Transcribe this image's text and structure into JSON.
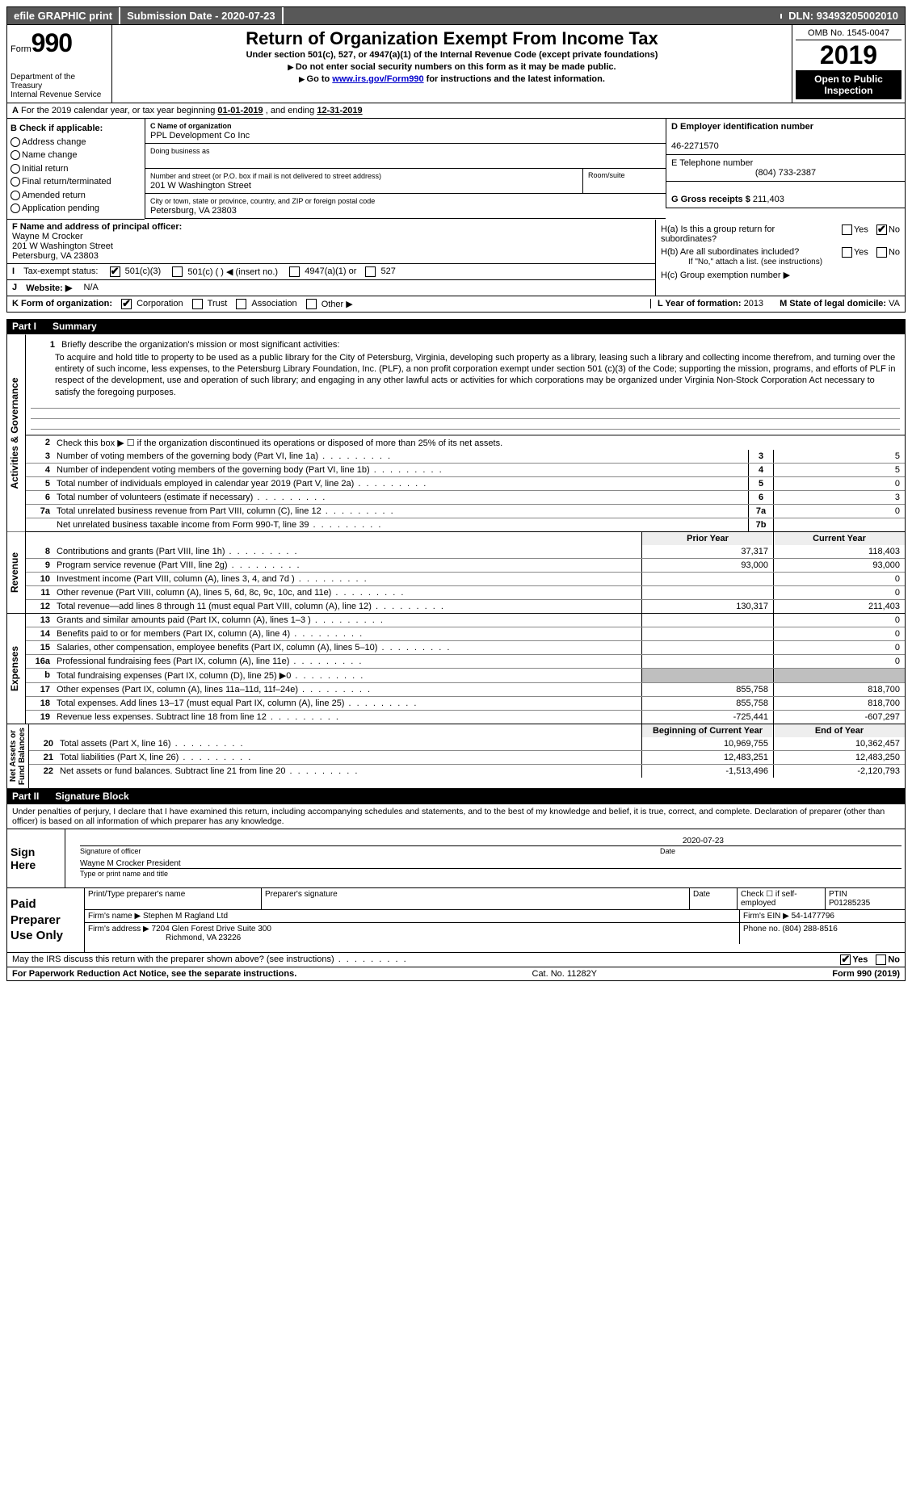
{
  "topbar": {
    "efile": "efile GRAPHIC print",
    "submission_label": "Submission Date - ",
    "submission_date": "2020-07-23",
    "dln_label": "DLN: ",
    "dln": "93493205002010"
  },
  "header": {
    "form_word": "Form",
    "form_number": "990",
    "dept": "Department of the Treasury\nInternal Revenue Service",
    "title": "Return of Organization Exempt From Income Tax",
    "subtitle": "Under section 501(c), 527, or 4947(a)(1) of the Internal Revenue Code (except private foundations)",
    "warn": "Do not enter social security numbers on this form as it may be made public.",
    "goto_pre": "Go to ",
    "goto_link": "www.irs.gov/Form990",
    "goto_post": " for instructions and the latest information.",
    "omb_label": "OMB No. ",
    "omb": "1545-0047",
    "year": "2019",
    "open": "Open to Public Inspection"
  },
  "rowA": {
    "pre": "For the 2019 calendar year, or tax year beginning ",
    "begin": "01-01-2019",
    "mid": " , and ending ",
    "end": "12-31-2019"
  },
  "B": {
    "heading": "B Check if applicable:",
    "opts": [
      "Address change",
      "Name change",
      "Initial return",
      "Final return/terminated",
      "Amended return",
      "Application pending"
    ]
  },
  "C": {
    "name_label": "C Name of organization",
    "name": "PPL Development Co Inc",
    "dba_label": "Doing business as",
    "dba": "",
    "street_label": "Number and street (or P.O. box if mail is not delivered to street address)",
    "room_label": "Room/suite",
    "street": "201 W Washington Street",
    "city_label": "City or town, state or province, country, and ZIP or foreign postal code",
    "city": "Petersburg, VA  23803"
  },
  "D": {
    "label": "D Employer identification number",
    "value": "46-2271570"
  },
  "E": {
    "label": "E Telephone number",
    "value": "(804) 733-2387"
  },
  "G": {
    "label": "G Gross receipts $ ",
    "value": "211,403"
  },
  "F": {
    "label": "F  Name and address of principal officer:",
    "name": "Wayne M Crocker",
    "street": "201 W Washington Street",
    "city": "Petersburg, VA  23803"
  },
  "H": {
    "a_label": "H(a)  Is this a group return for subordinates?",
    "b_label": "H(b)  Are all subordinates included?",
    "b_note": "If \"No,\" attach a list. (see instructions)",
    "c_label": "H(c)  Group exemption number ▶",
    "yes": "Yes",
    "no": "No"
  },
  "I": {
    "label": "Tax-exempt status:",
    "opts": {
      "c3": "501(c)(3)",
      "c": "501(c) (  ) ◀ (insert no.)",
      "a1": "4947(a)(1) or",
      "527": "527"
    }
  },
  "J": {
    "label": "Website: ▶",
    "value": "N/A"
  },
  "K": {
    "label": "K Form of organization:",
    "opts": [
      "Corporation",
      "Trust",
      "Association",
      "Other ▶"
    ],
    "L_label": "L Year of formation: ",
    "L_value": "2013",
    "M_label": "M State of legal domicile: ",
    "M_value": "VA"
  },
  "part1": {
    "num": "Part I",
    "title": "Summary"
  },
  "mission_label": "Briefly describe the organization's mission or most significant activities:",
  "mission": "To acquire and hold title to property to be used as a public library for the City of Petersburg, Virginia, developing such property as a library, leasing such a library and collecting income therefrom, and turning over the entirety of such income, less expenses, to the Petersburg Library Foundation, Inc. (PLF), a non profit corporation exempt under section 501 (c)(3) of the Code; supporting the mission, programs, and efforts of PLF in respect of the development, use and operation of such library; and engaging in any other lawful acts or activities for which corporations may be organized under Virginia Non-Stock Corporation Act necessary to satisfy the foregoing purposes.",
  "line2": "Check this box ▶ ☐ if the organization discontinued its operations or disposed of more than 25% of its net assets.",
  "governance": [
    {
      "n": "3",
      "t": "Number of voting members of the governing body (Part VI, line 1a)",
      "c": "3",
      "v": "5"
    },
    {
      "n": "4",
      "t": "Number of independent voting members of the governing body (Part VI, line 1b)",
      "c": "4",
      "v": "5"
    },
    {
      "n": "5",
      "t": "Total number of individuals employed in calendar year 2019 (Part V, line 2a)",
      "c": "5",
      "v": "0"
    },
    {
      "n": "6",
      "t": "Total number of volunteers (estimate if necessary)",
      "c": "6",
      "v": "3"
    },
    {
      "n": "7a",
      "t": "Total unrelated business revenue from Part VIII, column (C), line 12",
      "c": "7a",
      "v": "0"
    },
    {
      "n": "",
      "t": "Net unrelated business taxable income from Form 990-T, line 39",
      "c": "7b",
      "v": ""
    }
  ],
  "cols": {
    "prior": "Prior Year",
    "current": "Current Year",
    "boy": "Beginning of Current Year",
    "eoy": "End of Year"
  },
  "revenue": [
    {
      "n": "8",
      "t": "Contributions and grants (Part VIII, line 1h)",
      "p": "37,317",
      "c": "118,403"
    },
    {
      "n": "9",
      "t": "Program service revenue (Part VIII, line 2g)",
      "p": "93,000",
      "c": "93,000"
    },
    {
      "n": "10",
      "t": "Investment income (Part VIII, column (A), lines 3, 4, and 7d )",
      "p": "",
      "c": "0"
    },
    {
      "n": "11",
      "t": "Other revenue (Part VIII, column (A), lines 5, 6d, 8c, 9c, 10c, and 11e)",
      "p": "",
      "c": "0"
    },
    {
      "n": "12",
      "t": "Total revenue—add lines 8 through 11 (must equal Part VIII, column (A), line 12)",
      "p": "130,317",
      "c": "211,403"
    }
  ],
  "expenses": [
    {
      "n": "13",
      "t": "Grants and similar amounts paid (Part IX, column (A), lines 1–3 )",
      "p": "",
      "c": "0"
    },
    {
      "n": "14",
      "t": "Benefits paid to or for members (Part IX, column (A), line 4)",
      "p": "",
      "c": "0"
    },
    {
      "n": "15",
      "t": "Salaries, other compensation, employee benefits (Part IX, column (A), lines 5–10)",
      "p": "",
      "c": "0"
    },
    {
      "n": "16a",
      "t": "Professional fundraising fees (Part IX, column (A), line 11e)",
      "p": "",
      "c": "0"
    },
    {
      "n": "b",
      "t": "Total fundraising expenses (Part IX, column (D), line 25) ▶0",
      "p": "shade",
      "c": "shade"
    },
    {
      "n": "17",
      "t": "Other expenses (Part IX, column (A), lines 11a–11d, 11f–24e)",
      "p": "855,758",
      "c": "818,700"
    },
    {
      "n": "18",
      "t": "Total expenses. Add lines 13–17 (must equal Part IX, column (A), line 25)",
      "p": "855,758",
      "c": "818,700"
    },
    {
      "n": "19",
      "t": "Revenue less expenses. Subtract line 18 from line 12",
      "p": "-725,441",
      "c": "-607,297"
    }
  ],
  "netassets": [
    {
      "n": "20",
      "t": "Total assets (Part X, line 16)",
      "p": "10,969,755",
      "c": "10,362,457"
    },
    {
      "n": "21",
      "t": "Total liabilities (Part X, line 26)",
      "p": "12,483,251",
      "c": "12,483,250"
    },
    {
      "n": "22",
      "t": "Net assets or fund balances. Subtract line 21 from line 20",
      "p": "-1,513,496",
      "c": "-2,120,793"
    }
  ],
  "vlabels": {
    "ag": "Activities & Governance",
    "rev": "Revenue",
    "exp": "Expenses",
    "na": "Net Assets or\nFund Balances"
  },
  "part2": {
    "num": "Part II",
    "title": "Signature Block"
  },
  "perjury": "Under penalties of perjury, I declare that I have examined this return, including accompanying schedules and statements, and to the best of my knowledge and belief, it is true, correct, and complete. Declaration of preparer (other than officer) is based on all information of which preparer has any knowledge.",
  "sign": {
    "here": "Sign Here",
    "sig_label": "Signature of officer",
    "date_label": "Date",
    "date": "2020-07-23",
    "name": "Wayne M Crocker  President",
    "name_label": "Type or print name and title"
  },
  "preparer": {
    "title": "Paid Preparer Use Only",
    "h_name": "Print/Type preparer's name",
    "h_sig": "Preparer's signature",
    "h_date": "Date",
    "check_label": "Check ☐ if self-employed",
    "ptin_label": "PTIN",
    "ptin": "P01285235",
    "firm_name_label": "Firm's name   ▶",
    "firm_name": "Stephen M Ragland Ltd",
    "firm_ein_label": "Firm's EIN ▶",
    "firm_ein": "54-1477796",
    "firm_addr_label": "Firm's address ▶",
    "firm_addr": "7204 Glen Forest Drive Suite 300",
    "firm_city": "Richmond, VA  23226",
    "phone_label": "Phone no. ",
    "phone": "(804) 288-8516"
  },
  "discuss": {
    "q": "May the IRS discuss this return with the preparer shown above? (see instructions)",
    "yes": "Yes",
    "no": "No"
  },
  "footer": {
    "left": "For Paperwork Reduction Act Notice, see the separate instructions.",
    "mid": "Cat. No. 11282Y",
    "right": "Form 990 (2019)"
  },
  "letters": {
    "A": "A",
    "B": "B",
    "I": "I",
    "J": "J"
  }
}
